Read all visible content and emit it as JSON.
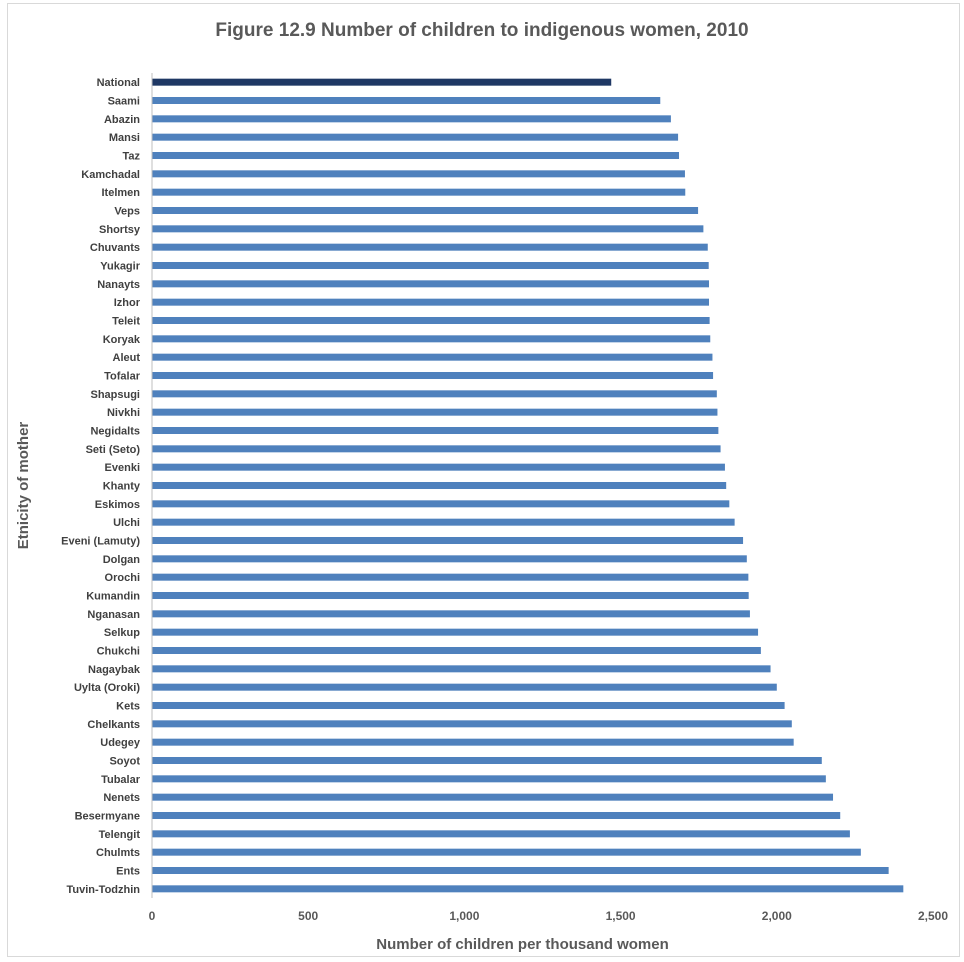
{
  "chart_data": {
    "type": "bar",
    "orientation": "horizontal",
    "title": "Figure 12.9 Number of children to indigenous women, 2010",
    "xlabel": "Number of children per thousand women",
    "ylabel": "Etnicity of mother",
    "xlim": [
      0,
      2500
    ],
    "xticks": [
      0,
      500,
      1000,
      1500,
      2000,
      2500
    ],
    "xtick_labels": [
      "0",
      "500",
      "1,000",
      "1,500",
      "2,000",
      "2,500"
    ],
    "grid": false,
    "legend": "none",
    "highlight_category": "National",
    "colors": {
      "bar": "#4f81bd",
      "highlight_bar": "#1f3864",
      "axis_text": "#595959",
      "category_text": "#404040",
      "axis_line": "#bfbfbf"
    },
    "categories": [
      "National",
      "Saami",
      "Abazin",
      "Mansi",
      "Taz",
      "Kamchadal",
      "Itelmen",
      "Veps",
      "Shortsy",
      "Chuvants",
      "Yukagir",
      "Nanayts",
      "Izhor",
      "Teleit",
      "Koryak",
      "Aleut",
      "Tofalar",
      "Shapsugi",
      "Nivkhi",
      "Negidalts",
      "Seti (Seto)",
      "Evenki",
      "Khanty",
      "Eskimos",
      "Ulchi",
      "Eveni (Lamuty)",
      "Dolgan",
      "Orochi",
      "Kumandin",
      "Nganasan",
      "Selkup",
      "Chukchi",
      "Nagaybak",
      "Uylta (Oroki)",
      "Kets",
      "Chelkants",
      "Udegey",
      "Soyot",
      "Tubalar",
      "Nenets",
      "Besermyane",
      "Telengit",
      "Chulmts",
      "Ents",
      "Tuvin-Todzhin"
    ],
    "values": [
      1470,
      1627,
      1661,
      1684,
      1687,
      1706,
      1707,
      1748,
      1765,
      1779,
      1782,
      1783,
      1783,
      1785,
      1787,
      1794,
      1796,
      1808,
      1810,
      1813,
      1820,
      1834,
      1838,
      1848,
      1865,
      1892,
      1904,
      1909,
      1910,
      1914,
      1940,
      1949,
      1980,
      2000,
      2025,
      2048,
      2054,
      2144,
      2157,
      2180,
      2203,
      2234,
      2269,
      2358,
      2405
    ]
  }
}
